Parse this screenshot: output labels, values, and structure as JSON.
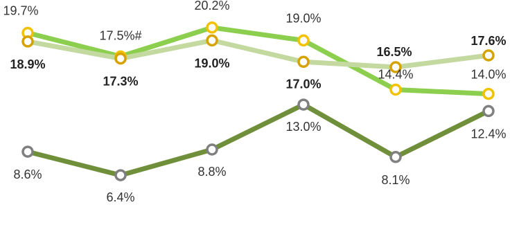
{
  "chart_data": {
    "type": "line",
    "x": [
      1,
      2,
      3,
      4,
      5,
      6
    ],
    "ylim": [
      0,
      22
    ],
    "grid": false,
    "series": [
      {
        "values": [
          19.7,
          17.5,
          20.2,
          19.0,
          14.4,
          14.0
        ],
        "labels": [
          "19.7%",
          "17.5%#",
          "20.2%",
          "19.0%",
          "14.4%",
          "14.0%"
        ],
        "label_bold": false,
        "line_color": "#8ccf4f",
        "marker_color": "#f2c200"
      },
      {
        "values": [
          18.9,
          17.3,
          19.0,
          17.0,
          16.5,
          17.6
        ],
        "labels": [
          "18.9%",
          "17.3%",
          "19.0%",
          "17.0%",
          "16.5%",
          "17.6%"
        ],
        "label_bold": true,
        "line_color": "#c3d9a0",
        "marker_color": "#d6a200"
      },
      {
        "values": [
          8.6,
          6.4,
          8.8,
          13.0,
          8.1,
          12.4
        ],
        "labels": [
          "8.6%",
          "6.4%",
          "8.8%",
          "13.0%",
          "8.1%",
          "12.4%"
        ],
        "label_bold": false,
        "line_color": "#6f8f3a",
        "marker_color": "#808080"
      }
    ]
  }
}
